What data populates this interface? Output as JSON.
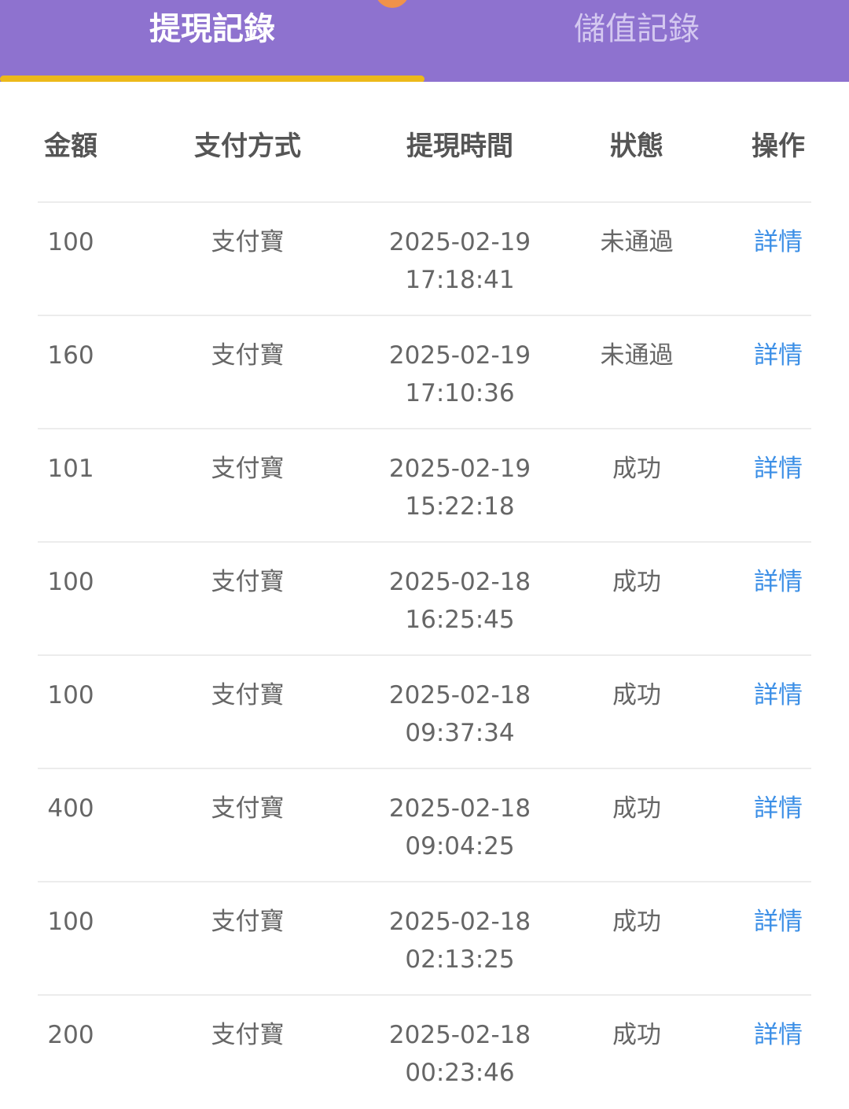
{
  "tabs": [
    {
      "label": "提現記錄",
      "active": true
    },
    {
      "label": "儲值記錄",
      "active": false
    }
  ],
  "colors": {
    "header": "#8e72cf",
    "indicator": "#ecb91a",
    "badge": "#f0924a",
    "link": "#3a8ee6"
  },
  "table": {
    "headers": [
      "金額",
      "支付方式",
      "提現時間",
      "狀態",
      "操作"
    ],
    "rows": [
      {
        "amount": "100",
        "method": "支付寶",
        "date": "2025-02-19",
        "time": "17:18:41",
        "status": "未通過",
        "action": "詳情"
      },
      {
        "amount": "160",
        "method": "支付寶",
        "date": "2025-02-19",
        "time": "17:10:36",
        "status": "未通過",
        "action": "詳情"
      },
      {
        "amount": "101",
        "method": "支付寶",
        "date": "2025-02-19",
        "time": "15:22:18",
        "status": "成功",
        "action": "詳情"
      },
      {
        "amount": "100",
        "method": "支付寶",
        "date": "2025-02-18",
        "time": "16:25:45",
        "status": "成功",
        "action": "詳情"
      },
      {
        "amount": "100",
        "method": "支付寶",
        "date": "2025-02-18",
        "time": "09:37:34",
        "status": "成功",
        "action": "詳情"
      },
      {
        "amount": "400",
        "method": "支付寶",
        "date": "2025-02-18",
        "time": "09:04:25",
        "status": "成功",
        "action": "詳情"
      },
      {
        "amount": "100",
        "method": "支付寶",
        "date": "2025-02-18",
        "time": "02:13:25",
        "status": "成功",
        "action": "詳情"
      },
      {
        "amount": "200",
        "method": "支付寶",
        "date": "2025-02-18",
        "time": "00:23:46",
        "status": "成功",
        "action": "詳情"
      }
    ]
  }
}
